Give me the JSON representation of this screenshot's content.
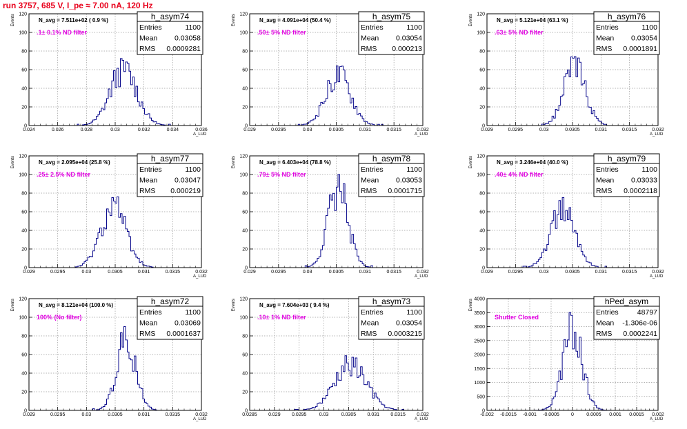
{
  "page_title": "run 3757,   685 V, I_pe ≈ 7.00 nA, 120 Hz",
  "colors": {
    "title": "#e8001c",
    "histogram": "#0a0a8c",
    "filter_text": "#e000e0",
    "grid": "#9a9a9a"
  },
  "chart_data": [
    {
      "type": "histogram",
      "title": "h_asym74",
      "navg": "N_avg = 7.511e+02 ( 0.9 %)",
      "filter": ".1± 0.1% ND filter",
      "stats": {
        "entries_label": "Entries",
        "entries": "1100",
        "mean_label": "Mean",
        "mean": "0.03058",
        "rms_label": "RMS",
        "rms": "0.0009281"
      },
      "xlabel": "A_LUD",
      "ylabel": "Events",
      "xlim": [
        0.024,
        0.036
      ],
      "ylim": [
        0,
        120
      ],
      "xticks": [
        0.024,
        0.026,
        0.028,
        0.03,
        0.032,
        0.034,
        0.036
      ],
      "xtick_labels": [
        "0.024",
        "0.026",
        "0.028",
        "0.03",
        "0.032",
        "0.034",
        "0.036"
      ],
      "yticks": [
        0,
        20,
        40,
        60,
        80,
        100,
        120
      ],
      "ytick_labels": [
        "0",
        "20",
        "40",
        "60",
        "80",
        "100",
        "120"
      ],
      "peak": 70
    },
    {
      "type": "histogram",
      "title": "h_asym75",
      "navg": "N_avg = 4.091e+04 (50.4 %)",
      "filter": ".50± 5% ND filter",
      "stats": {
        "entries_label": "Entries",
        "entries": "1100",
        "mean_label": "Mean",
        "mean": "0.03054",
        "rms_label": "RMS",
        "rms": "0.000213"
      },
      "xlabel": "A_LUD",
      "ylabel": "Events",
      "xlim": [
        0.029,
        0.032
      ],
      "ylim": [
        0,
        120
      ],
      "xticks": [
        0.029,
        0.0295,
        0.03,
        0.0305,
        0.031,
        0.0315,
        0.032
      ],
      "xtick_labels": [
        "0.029",
        "0.0295",
        "0.03",
        "0.0305",
        "0.031",
        "0.0315",
        "0.032"
      ],
      "yticks": [
        0,
        20,
        40,
        60,
        80,
        100,
        120
      ],
      "ytick_labels": [
        "0",
        "20",
        "40",
        "60",
        "80",
        "100",
        "120"
      ],
      "peak": 64
    },
    {
      "type": "histogram",
      "title": "h_asym76",
      "navg": "N_avg = 5.121e+04 (63.1 %)",
      "filter": ".63± 5% ND filter",
      "stats": {
        "entries_label": "Entries",
        "entries": "1100",
        "mean_label": "Mean",
        "mean": "0.03054",
        "rms_label": "RMS",
        "rms": "0.0001891"
      },
      "xlabel": "A_LUD",
      "ylabel": "Events",
      "xlim": [
        0.029,
        0.032
      ],
      "ylim": [
        0,
        120
      ],
      "xticks": [
        0.029,
        0.0295,
        0.03,
        0.0305,
        0.031,
        0.0315,
        0.032
      ],
      "xtick_labels": [
        "0.029",
        "0.0295",
        "0.03",
        "0.0305",
        "0.031",
        "0.0315",
        "0.032"
      ],
      "yticks": [
        0,
        20,
        40,
        60,
        80,
        100,
        120
      ],
      "ytick_labels": [
        "0",
        "20",
        "40",
        "60",
        "80",
        "100",
        "120"
      ],
      "peak": 74
    },
    {
      "type": "histogram",
      "title": "h_asym77",
      "navg": "N_avg = 2.095e+04 (25.8 %)",
      "filter": ".25± 2.5% ND filter",
      "stats": {
        "entries_label": "Entries",
        "entries": "1100",
        "mean_label": "Mean",
        "mean": "0.03047",
        "rms_label": "RMS",
        "rms": "0.000219"
      },
      "xlabel": "A_LUD",
      "ylabel": "Events",
      "xlim": [
        0.029,
        0.032
      ],
      "ylim": [
        0,
        120
      ],
      "xticks": [
        0.029,
        0.0295,
        0.03,
        0.0305,
        0.031,
        0.0315,
        0.032
      ],
      "xtick_labels": [
        "0.029",
        "0.0295",
        "0.03",
        "0.0305",
        "0.031",
        "0.0315",
        "0.032"
      ],
      "yticks": [
        0,
        20,
        40,
        60,
        80,
        100,
        120
      ],
      "ytick_labels": [
        "0",
        "20",
        "40",
        "60",
        "80",
        "100",
        "120"
      ],
      "peak": 76
    },
    {
      "type": "histogram",
      "title": "h_asym78",
      "navg": "N_avg = 6.403e+04 (78.8 %)",
      "filter": ".79± 5% ND filter",
      "stats": {
        "entries_label": "Entries",
        "entries": "1100",
        "mean_label": "Mean",
        "mean": "0.03053",
        "rms_label": "RMS",
        "rms": "0.0001715"
      },
      "xlabel": "A_LUD",
      "ylabel": "Events",
      "xlim": [
        0.029,
        0.032
      ],
      "ylim": [
        0,
        120
      ],
      "xticks": [
        0.029,
        0.0295,
        0.03,
        0.0305,
        0.031,
        0.0315,
        0.032
      ],
      "xtick_labels": [
        "0.029",
        "0.0295",
        "0.03",
        "0.0305",
        "0.031",
        "0.0315",
        "0.032"
      ],
      "yticks": [
        0,
        20,
        40,
        60,
        80,
        100,
        120
      ],
      "ytick_labels": [
        "0",
        "20",
        "40",
        "60",
        "80",
        "100",
        "120"
      ],
      "peak": 100
    },
    {
      "type": "histogram",
      "title": "h_asym79",
      "navg": "N_avg = 3.246e+04 (40.0 %)",
      "filter": ".40± 4% ND filter",
      "stats": {
        "entries_label": "Entries",
        "entries": "1100",
        "mean_label": "Mean",
        "mean": "0.03033",
        "rms_label": "RMS",
        "rms": "0.0002118"
      },
      "xlabel": "A_LUD",
      "ylabel": "Events",
      "xlim": [
        0.029,
        0.032
      ],
      "ylim": [
        0,
        120
      ],
      "xticks": [
        0.029,
        0.0295,
        0.03,
        0.0305,
        0.031,
        0.0315,
        0.032
      ],
      "xtick_labels": [
        "0.029",
        "0.0295",
        "0.03",
        "0.0305",
        "0.031",
        "0.0315",
        "0.032"
      ],
      "yticks": [
        0,
        20,
        40,
        60,
        80,
        100,
        120
      ],
      "ytick_labels": [
        "0",
        "20",
        "40",
        "60",
        "80",
        "100",
        "120"
      ],
      "peak": 72
    },
    {
      "type": "histogram",
      "title": "h_asym72",
      "navg": "N_avg = 8.121e+04 (100.0 %)",
      "filter": "100% (No filter)",
      "stats": {
        "entries_label": "Entries",
        "entries": "1100",
        "mean_label": "Mean",
        "mean": "0.03069",
        "rms_label": "RMS",
        "rms": "0.0001637"
      },
      "xlabel": "A_LUD",
      "ylabel": "Events",
      "xlim": [
        0.029,
        0.032
      ],
      "ylim": [
        0,
        120
      ],
      "xticks": [
        0.029,
        0.0295,
        0.03,
        0.0305,
        0.031,
        0.0315,
        0.032
      ],
      "xtick_labels": [
        "0.029",
        "0.0295",
        "0.03",
        "0.0305",
        "0.031",
        "0.0315",
        "0.032"
      ],
      "yticks": [
        0,
        20,
        40,
        60,
        80,
        100,
        120
      ],
      "ytick_labels": [
        "0",
        "20",
        "40",
        "60",
        "80",
        "100",
        "120"
      ],
      "peak": 90
    },
    {
      "type": "histogram",
      "title": "h_asym73",
      "navg": "N_avg = 7.604e+03 ( 9.4 %)",
      "filter": ".10± 1% ND filter",
      "stats": {
        "entries_label": "Entries",
        "entries": "1100",
        "mean_label": "Mean",
        "mean": "0.03054",
        "rms_label": "RMS",
        "rms": "0.0003215"
      },
      "xlabel": "A_LUD",
      "ylabel": "Events",
      "xlim": [
        0.0285,
        0.032
      ],
      "ylim": [
        0,
        120
      ],
      "xticks": [
        0.0285,
        0.029,
        0.0295,
        0.03,
        0.0305,
        0.031,
        0.0315,
        0.032
      ],
      "xtick_labels": [
        "0.0285",
        "0.029",
        "0.0295",
        "0.03",
        "0.0305",
        "0.031",
        "0.0315",
        "0.032"
      ],
      "yticks": [
        0,
        20,
        40,
        60,
        80,
        100,
        120
      ],
      "ytick_labels": [
        "0",
        "20",
        "40",
        "60",
        "80",
        "100",
        "120"
      ],
      "peak": 57
    },
    {
      "type": "histogram",
      "title": "hPed_asym",
      "navg": "",
      "filter": "Shutter Closed",
      "stats": {
        "entries_label": "Entries",
        "entries": "48797",
        "mean_label": "Mean",
        "mean": "-1.306e-06",
        "rms_label": "RMS",
        "rms": "0.0002241"
      },
      "xlabel": "A_LUD",
      "ylabel": "Events",
      "xlim": [
        -0.002,
        0.002
      ],
      "ylim": [
        0,
        4000
      ],
      "xticks": [
        -0.002,
        -0.0015,
        -0.001,
        -0.0005,
        0,
        0.0005,
        0.001,
        0.0015,
        0.002
      ],
      "xtick_labels": [
        "-0.002",
        "-0.0015",
        "-0.001",
        "-0.0005",
        "0",
        "0.0005",
        "0.001",
        "0.0015",
        "0.002"
      ],
      "yticks": [
        0,
        500,
        1000,
        1500,
        2000,
        2500,
        3000,
        3500,
        4000
      ],
      "ytick_labels": [
        "0",
        "500",
        "1000",
        "1500",
        "2000",
        "2500",
        "3000",
        "3500",
        "4000"
      ],
      "peak": 3400
    }
  ]
}
